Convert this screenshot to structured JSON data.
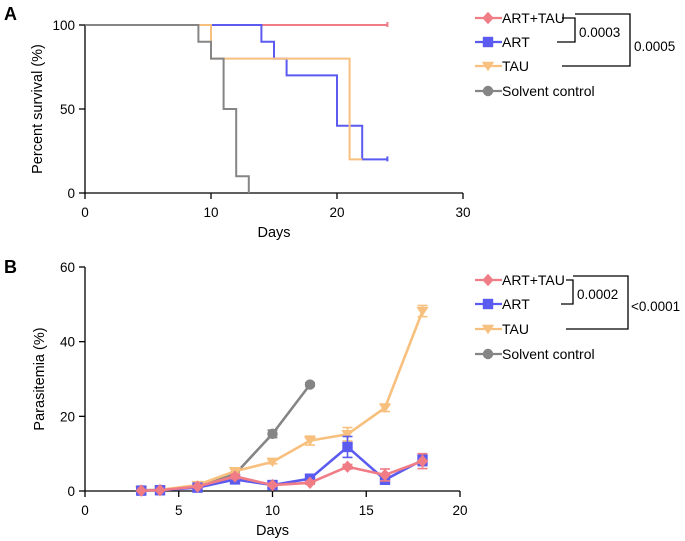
{
  "colors": {
    "ART+TAU": "#f07c86",
    "ART": "#5b5bf0",
    "TAU": "#f8c07e",
    "Solvent control": "#858585"
  },
  "chart_data": [
    {
      "panel": "A",
      "type": "line",
      "subtype": "kaplan-meier",
      "title": "",
      "xlabel": "Days",
      "ylabel": "Percent survival (%)",
      "xlim": [
        0,
        30
      ],
      "ylim": [
        0,
        100
      ],
      "xticks": [
        0,
        10,
        20,
        30
      ],
      "yticks": [
        0,
        50,
        100
      ],
      "legend": [
        "ART+TAU",
        "ART",
        "TAU",
        "Solvent control"
      ],
      "legend_position": "right",
      "series": [
        {
          "name": "ART+TAU",
          "x": [
            0,
            24
          ],
          "y": [
            100,
            100
          ],
          "censor_end": true
        },
        {
          "name": "ART",
          "x": [
            0,
            14,
            15,
            16,
            20,
            22,
            24
          ],
          "y": [
            100,
            90,
            80,
            70,
            40,
            20,
            20
          ],
          "censor_end": true
        },
        {
          "name": "TAU",
          "x": [
            0,
            10,
            20,
            21,
            22
          ],
          "y": [
            100,
            80,
            80,
            20,
            20
          ],
          "censor_end": false
        },
        {
          "name": "Solvent control",
          "x": [
            0,
            9,
            10,
            11,
            12,
            13
          ],
          "y": [
            100,
            90,
            80,
            50,
            10,
            0
          ],
          "censor_end": false
        }
      ],
      "comparisons": [
        {
          "groups": [
            "ART+TAU",
            "ART"
          ],
          "p": "0.0003"
        },
        {
          "groups": [
            "ART+TAU",
            "TAU"
          ],
          "p": "0.0005"
        }
      ]
    },
    {
      "panel": "B",
      "type": "line",
      "title": "",
      "xlabel": "Days",
      "ylabel": "Parasitemia (%)",
      "xlim": [
        0,
        20
      ],
      "ylim": [
        0,
        60
      ],
      "xticks": [
        0,
        5,
        10,
        15,
        20
      ],
      "yticks": [
        0,
        20,
        40,
        60
      ],
      "legend": [
        "ART+TAU",
        "ART",
        "TAU",
        "Solvent control"
      ],
      "legend_position": "right",
      "series": [
        {
          "name": "Solvent control",
          "marker": "circle",
          "x": [
            3,
            4,
            6,
            8,
            10,
            12
          ],
          "y": [
            0.2,
            0.3,
            1.2,
            4.5,
            15.3,
            28.5
          ],
          "err": [
            0,
            0,
            0.3,
            0.5,
            1.0,
            0.5
          ]
        },
        {
          "name": "TAU",
          "marker": "triangle-down",
          "x": [
            3,
            4,
            6,
            8,
            10,
            12,
            14,
            16,
            18
          ],
          "y": [
            0.2,
            0.3,
            1.6,
            5.3,
            7.8,
            13.5,
            15.2,
            22.3,
            48.2
          ],
          "err": [
            0,
            0,
            0.4,
            0.5,
            0.5,
            1.2,
            1.8,
            1.0,
            1.5
          ]
        },
        {
          "name": "ART",
          "marker": "square",
          "x": [
            3,
            4,
            6,
            8,
            10,
            12,
            14,
            16,
            18
          ],
          "y": [
            0.1,
            0.2,
            0.9,
            3.1,
            1.6,
            3.3,
            11.8,
            3.0,
            8.3
          ],
          "err": [
            0,
            0,
            0.2,
            0.6,
            0.3,
            0.5,
            2.8,
            0.8,
            1.5
          ]
        },
        {
          "name": "ART+TAU",
          "marker": "diamond",
          "x": [
            3,
            4,
            6,
            8,
            10,
            12,
            14,
            16,
            18
          ],
          "y": [
            0.1,
            0.2,
            1.2,
            3.9,
            1.6,
            2.2,
            6.5,
            4.3,
            8.0
          ],
          "err": [
            0,
            0,
            0.2,
            0.6,
            0.3,
            0.4,
            0.6,
            1.6,
            2.0
          ]
        }
      ],
      "comparisons": [
        {
          "groups": [
            "ART+TAU",
            "ART"
          ],
          "p": "0.0002"
        },
        {
          "groups": [
            "ART+TAU",
            "TAU"
          ],
          "p": "<0.0001"
        }
      ]
    }
  ]
}
